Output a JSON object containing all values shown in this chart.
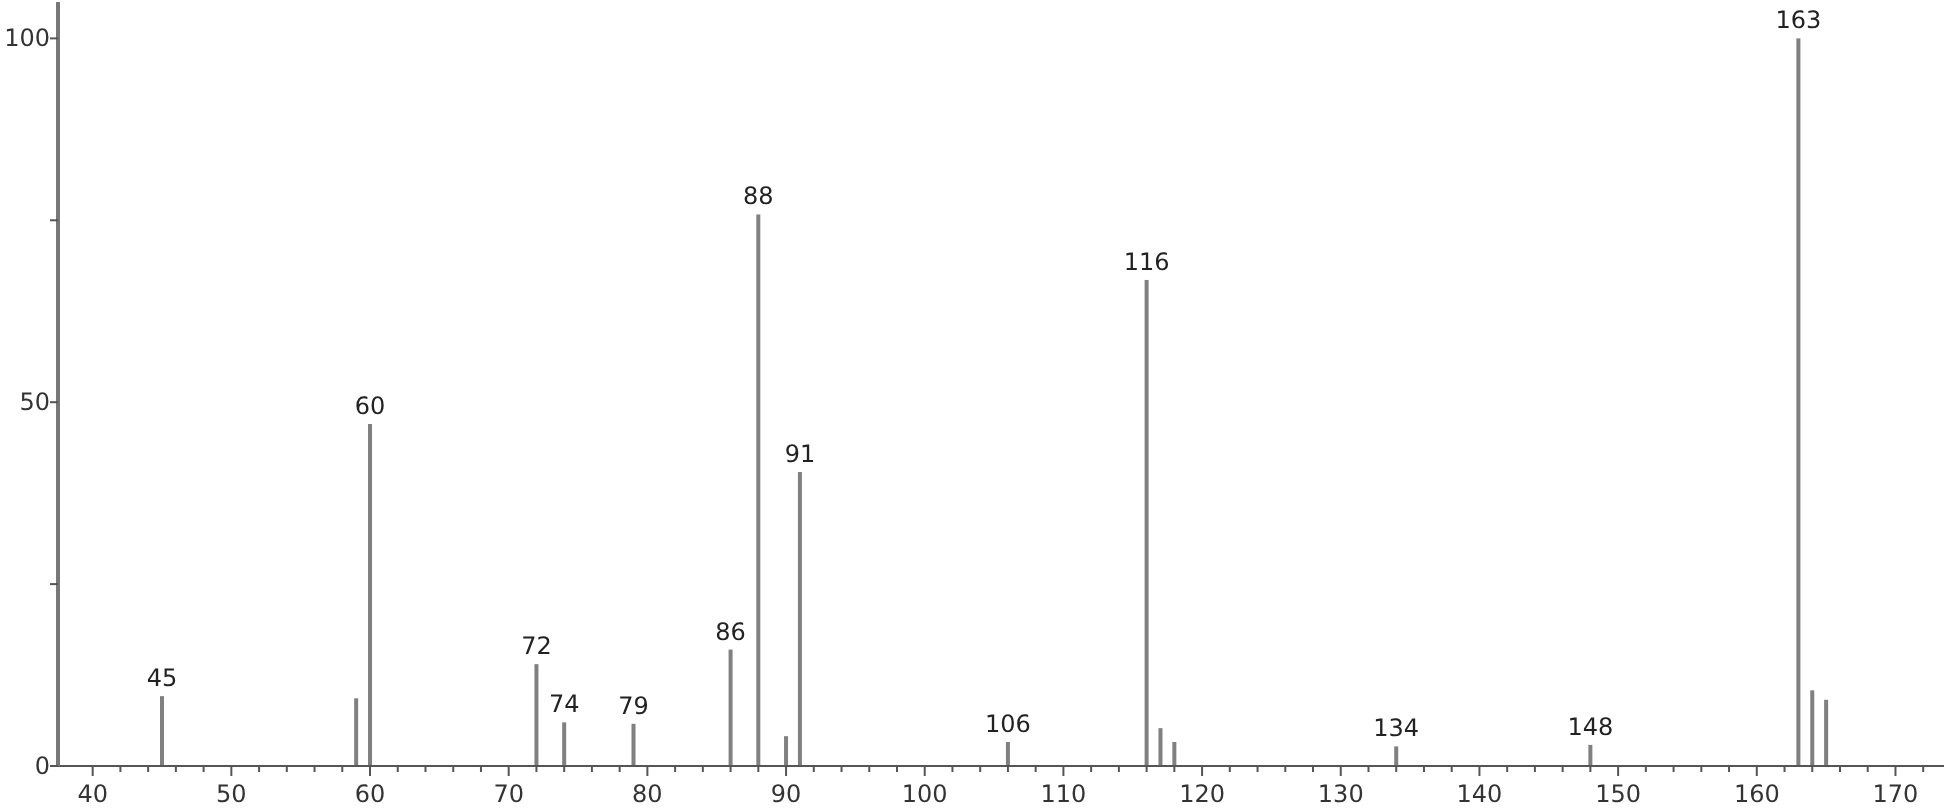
{
  "chart_data": {
    "type": "bar",
    "x": [
      45,
      59,
      60,
      72,
      74,
      79,
      86,
      88,
      90,
      91,
      106,
      116,
      117,
      118,
      134,
      148,
      163,
      164,
      165
    ],
    "values": [
      9.6,
      9.3,
      47,
      14,
      6,
      5.8,
      16,
      75.8,
      4.1,
      40.4,
      3.3,
      66.8,
      5.2,
      3.3,
      2.7,
      2.9,
      100,
      10.4,
      9.1
    ],
    "color": "#808080",
    "xlim": [
      37.5,
      173.5
    ],
    "xticks": [
      40,
      {
        "value": 42,
        "label": null
      },
      {
        "value": 44,
        "label": null
      },
      {
        "value": 46,
        "label": null
      },
      {
        "value": 48,
        "label": null
      },
      50,
      {
        "value": 52,
        "label": null
      },
      {
        "value": 54,
        "label": null
      },
      {
        "value": 56,
        "label": null
      },
      {
        "value": 58,
        "label": null
      },
      60,
      {
        "value": 62,
        "label": null
      },
      {
        "value": 64,
        "label": null
      },
      {
        "value": 66,
        "label": null
      },
      {
        "value": 68,
        "label": null
      },
      70,
      {
        "value": 72,
        "label": null
      },
      {
        "value": 74,
        "label": null
      },
      {
        "value": 76,
        "label": null
      },
      {
        "value": 78,
        "label": null
      },
      80,
      {
        "value": 82,
        "label": null
      },
      {
        "value": 84,
        "label": null
      },
      {
        "value": 86,
        "label": null
      },
      {
        "value": 88,
        "label": null
      },
      90,
      {
        "value": 92,
        "label": null
      },
      {
        "value": 94,
        "label": null
      },
      {
        "value": 96,
        "label": null
      },
      {
        "value": 98,
        "label": null
      },
      100,
      {
        "value": 102,
        "label": null
      },
      {
        "value": 104,
        "label": null
      },
      {
        "value": 106,
        "label": null
      },
      {
        "value": 108,
        "label": null
      },
      110,
      {
        "value": 112,
        "label": null
      },
      {
        "value": 114,
        "label": null
      },
      {
        "value": 116,
        "label": null
      },
      {
        "value": 118,
        "label": null
      },
      120,
      {
        "value": 122,
        "label": null
      },
      {
        "value": 124,
        "label": null
      },
      {
        "value": 126,
        "label": null
      },
      {
        "value": 128,
        "label": null
      },
      130,
      {
        "value": 132,
        "label": null
      },
      {
        "value": 134,
        "label": null
      },
      {
        "value": 136,
        "label": null
      },
      {
        "value": 138,
        "label": null
      },
      140,
      {
        "value": 142,
        "label": null
      },
      {
        "value": 144,
        "label": null
      },
      {
        "value": 146,
        "label": null
      },
      {
        "value": 148,
        "label": null
      },
      150,
      {
        "value": 152,
        "label": null
      },
      {
        "value": 154,
        "label": null
      },
      {
        "value": 156,
        "label": null
      },
      {
        "value": 158,
        "label": null
      },
      160,
      {
        "value": 162,
        "label": null
      },
      {
        "value": 164,
        "label": null
      },
      {
        "value": 166,
        "label": null
      },
      {
        "value": 168,
        "label": null
      },
      170,
      {
        "value": 172,
        "label": null
      }
    ],
    "ylim": [
      0,
      105
    ],
    "yticks": [
      0,
      {
        "value": 25,
        "label": null
      },
      50,
      {
        "value": 75,
        "label": null
      },
      100
    ],
    "annotations": [
      {
        "text": "45",
        "x": 45,
        "y": 9.6
      },
      {
        "text": "60",
        "x": 60,
        "y": 47
      },
      {
        "text": "72",
        "x": 72,
        "y": 14
      },
      {
        "text": "74",
        "x": 74,
        "y": 6
      },
      {
        "text": "79",
        "x": 79,
        "y": 5.8
      },
      {
        "text": "86",
        "x": 86,
        "y": 16
      },
      {
        "text": "88",
        "x": 88,
        "y": 75.8
      },
      {
        "text": "91",
        "x": 91,
        "y": 40.4
      },
      {
        "text": "106",
        "x": 106,
        "y": 3.3
      },
      {
        "text": "116",
        "x": 116,
        "y": 66.8
      },
      {
        "text": "134",
        "x": 134,
        "y": 2.7
      },
      {
        "text": "148",
        "x": 148,
        "y": 2.9
      },
      {
        "text": "163",
        "x": 163,
        "y": 100
      }
    ]
  }
}
